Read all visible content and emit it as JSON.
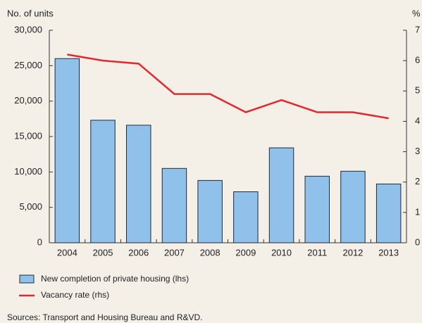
{
  "chart_data": {
    "type": "bar_line",
    "y_label": "No. of units",
    "y2_label": "%",
    "categories": [
      "2004",
      "2005",
      "2006",
      "2007",
      "2008",
      "2009",
      "2010",
      "2011",
      "2012",
      "2013"
    ],
    "series": [
      {
        "name": "New completion of private housing (lhs)",
        "type": "bar",
        "color": "#8fc1ea",
        "values": [
          26000,
          17300,
          16600,
          10500,
          8800,
          7200,
          13400,
          9400,
          10100,
          8300
        ]
      },
      {
        "name": "Vacancy rate (rhs)",
        "type": "line",
        "axis": "y2",
        "color": "#e2292e",
        "values": [
          6.2,
          6.0,
          5.9,
          4.9,
          4.9,
          4.3,
          4.7,
          4.3,
          4.3,
          4.1
        ]
      }
    ],
    "ylim": [
      0,
      30000
    ],
    "yticks": [
      0,
      {
        "value": 5000,
        "label": "5,000"
      },
      {
        "value": 10000,
        "label": "10,000"
      },
      {
        "value": 15000,
        "label": "15,000"
      },
      {
        "value": 20000,
        "label": "20,000"
      },
      {
        "value": 25000,
        "label": "25,000"
      },
      {
        "value": 30000,
        "label": "30,000"
      }
    ],
    "y2lim": [
      0,
      7
    ],
    "y2ticks": [
      0,
      1,
      2,
      3,
      4,
      5,
      6,
      7
    ],
    "source": "Sources: Transport and Housing Bureau and R&VD."
  }
}
